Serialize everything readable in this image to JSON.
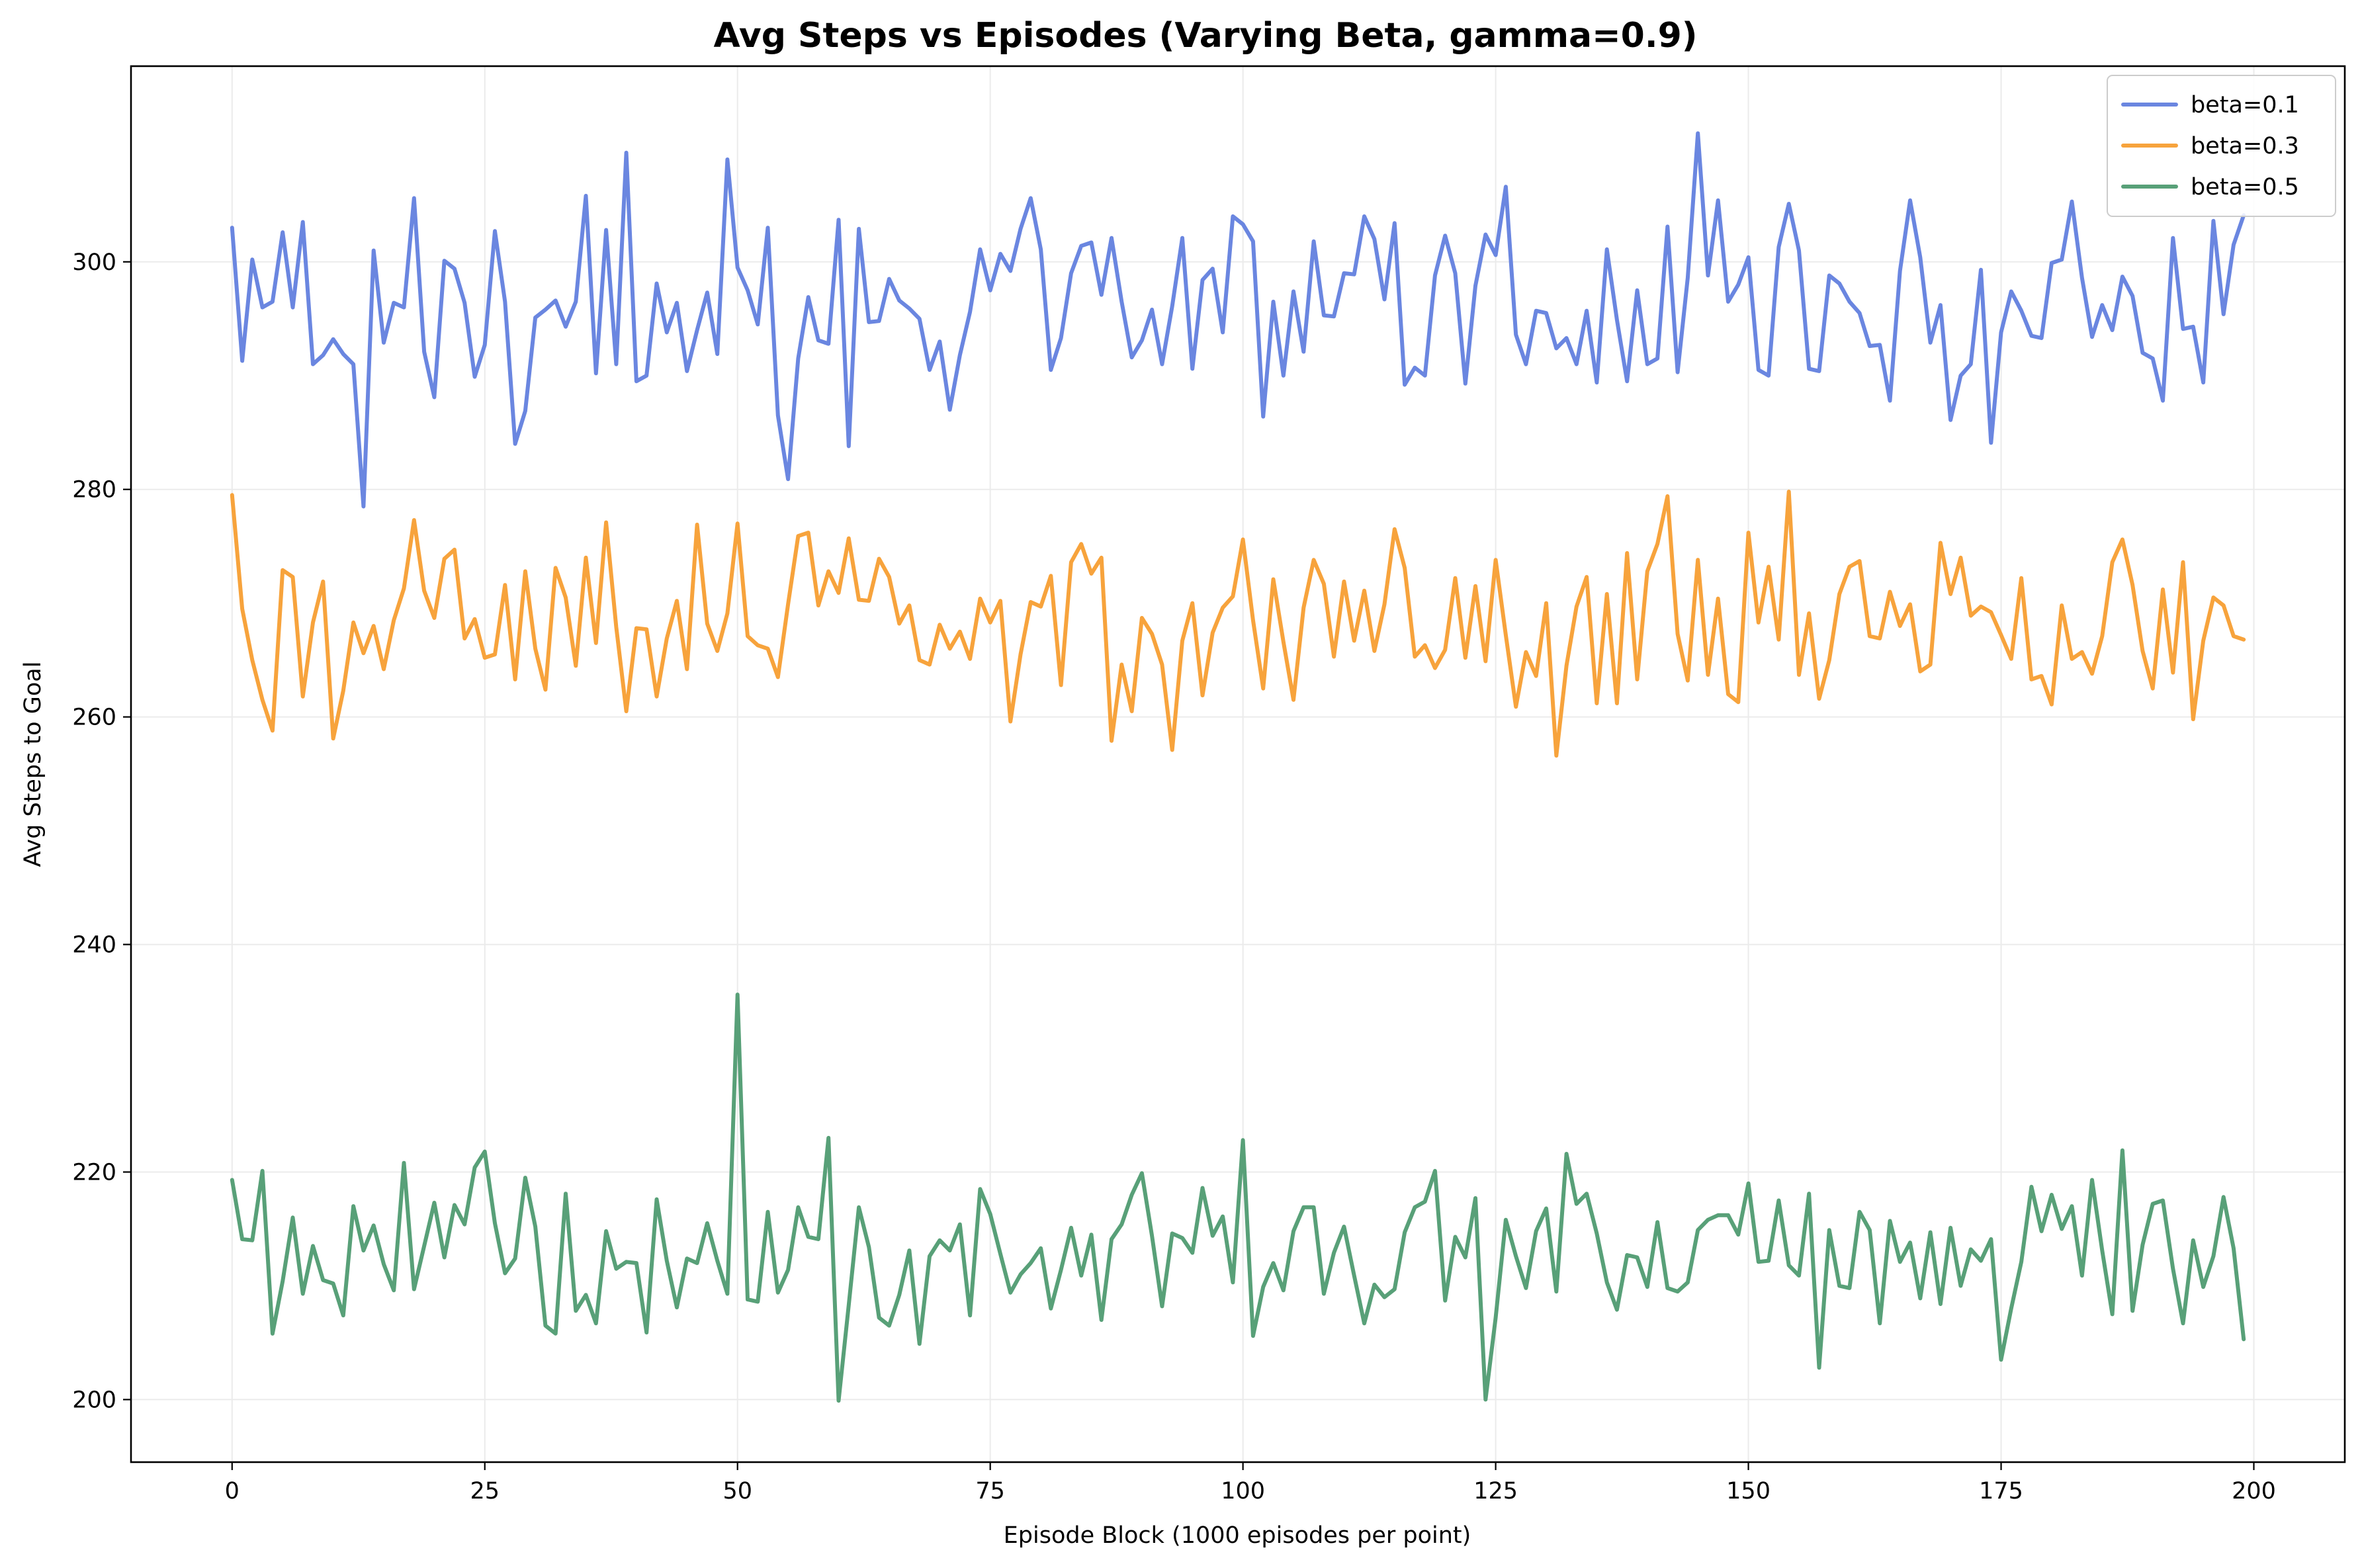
{
  "chart_data": {
    "type": "line",
    "title": "Avg Steps vs Episodes (Varying Beta, gamma=0.9)",
    "xlabel": "Episode Block (1000 episodes per point)",
    "ylabel": "Avg Steps to Goal",
    "xlim": [
      -10,
      209
    ],
    "ylim": [
      194.5,
      317.2
    ],
    "xticks": [
      0,
      25,
      50,
      75,
      100,
      125,
      150,
      175,
      200
    ],
    "yticks": [
      200,
      220,
      240,
      260,
      280,
      300
    ],
    "grid": true,
    "legend_position": "top-right",
    "series": [
      {
        "name": "beta=0.1",
        "color": "#6a86e0",
        "values": [
          303.0,
          291.3,
          300.2,
          296.0,
          296.5,
          302.6,
          296.0,
          303.5,
          291.0,
          291.8,
          293.2,
          291.9,
          291.0,
          278.5,
          301.0,
          292.9,
          296.4,
          296.0,
          305.6,
          292.1,
          288.1,
          300.1,
          299.4,
          296.4,
          289.9,
          292.7,
          302.7,
          296.5,
          284.0,
          286.9,
          295.1,
          295.8,
          296.6,
          294.3,
          296.5,
          305.8,
          290.2,
          302.8,
          291.0,
          309.6,
          289.5,
          290.0,
          298.1,
          293.8,
          296.4,
          290.4,
          294.0,
          297.3,
          291.9,
          309.0,
          299.5,
          297.5,
          294.5,
          303.0,
          286.5,
          280.9,
          291.5,
          296.9,
          293.1,
          292.8,
          303.7,
          283.8,
          302.9,
          294.7,
          294.8,
          298.5,
          296.6,
          295.9,
          295.0,
          290.5,
          293.0,
          287.0,
          291.8,
          295.6,
          301.1,
          297.5,
          300.7,
          299.2,
          302.9,
          305.6,
          301.1,
          290.5,
          293.3,
          299.0,
          301.4,
          301.7,
          297.1,
          302.1,
          296.5,
          291.6,
          293.1,
          295.8,
          291.0,
          296.1,
          302.1,
          290.6,
          298.4,
          299.4,
          293.8,
          304.0,
          303.3,
          301.8,
          286.4,
          296.5,
          290.0,
          297.4,
          292.1,
          301.8,
          295.3,
          295.2,
          299.0,
          298.9,
          304.0,
          302.0,
          296.7,
          303.4,
          289.2,
          290.7,
          290.0,
          298.8,
          302.3,
          299.0,
          289.3,
          297.9,
          302.4,
          300.6,
          306.6,
          293.6,
          291.0,
          295.7,
          295.5,
          292.4,
          293.3,
          291.0,
          295.7,
          289.4,
          301.1,
          294.9,
          289.5,
          297.5,
          291.0,
          291.5,
          303.1,
          290.3,
          298.6,
          311.3,
          298.8,
          305.4,
          296.5,
          298.0,
          300.4,
          290.5,
          290.0,
          301.3,
          305.1,
          301.0,
          290.6,
          290.4,
          298.8,
          298.1,
          296.5,
          295.5,
          292.6,
          292.7,
          287.8,
          299.2,
          305.4,
          300.4,
          292.9,
          296.2,
          286.1,
          290.0,
          291.0,
          299.3,
          284.1,
          293.8,
          297.4,
          295.7,
          293.5,
          293.3,
          299.9,
          300.2,
          305.3,
          298.6,
          293.4,
          296.2,
          294.0,
          298.7,
          297.0,
          292.0,
          291.5,
          287.8,
          302.1,
          294.1,
          294.3,
          289.4,
          303.6,
          295.4,
          301.5,
          304.1
        ]
      },
      {
        "name": "beta=0.3",
        "color": "#f7a33c",
        "values": [
          279.5,
          269.5,
          265.0,
          261.5,
          258.8,
          272.9,
          272.3,
          261.8,
          268.3,
          271.9,
          258.1,
          262.3,
          268.3,
          265.6,
          268.0,
          264.2,
          268.5,
          271.3,
          277.3,
          271.1,
          268.7,
          273.9,
          274.7,
          266.9,
          268.6,
          265.2,
          265.5,
          271.6,
          263.3,
          272.8,
          266.0,
          262.4,
          273.1,
          270.5,
          264.5,
          274.0,
          266.5,
          277.1,
          267.9,
          260.5,
          267.8,
          267.7,
          261.8,
          266.9,
          270.2,
          264.2,
          276.9,
          268.2,
          265.8,
          269.1,
          277.0,
          267.1,
          266.3,
          266.0,
          263.5,
          269.9,
          275.9,
          276.2,
          269.8,
          272.8,
          270.9,
          275.7,
          270.3,
          270.2,
          273.9,
          272.3,
          268.2,
          269.8,
          265.0,
          264.6,
          268.1,
          266.0,
          267.5,
          265.1,
          270.4,
          268.3,
          270.2,
          259.6,
          265.5,
          270.1,
          269.7,
          272.4,
          262.8,
          273.6,
          275.2,
          272.6,
          274.0,
          257.9,
          264.6,
          260.5,
          268.7,
          267.3,
          264.6,
          257.1,
          266.7,
          270.0,
          261.9,
          267.4,
          269.6,
          270.6,
          275.6,
          268.5,
          262.5,
          272.1,
          266.6,
          261.5,
          269.6,
          273.8,
          271.7,
          265.3,
          271.9,
          266.7,
          271.1,
          265.8,
          269.9,
          276.5,
          273.1,
          265.3,
          266.3,
          264.3,
          265.9,
          272.2,
          265.2,
          271.5,
          264.9,
          273.8,
          267.2,
          260.9,
          265.7,
          263.6,
          270.0,
          256.6,
          264.5,
          269.7,
          272.3,
          261.2,
          270.8,
          261.2,
          274.4,
          263.3,
          272.8,
          275.2,
          279.4,
          267.3,
          263.2,
          273.8,
          263.7,
          270.4,
          262.0,
          261.3,
          276.2,
          268.3,
          273.2,
          266.8,
          279.8,
          263.7,
          269.1,
          261.6,
          265.0,
          270.8,
          273.2,
          273.7,
          267.1,
          266.9,
          271.0,
          268.0,
          269.9,
          264.0,
          264.6,
          275.3,
          270.8,
          274.0,
          268.9,
          269.7,
          269.2,
          267.2,
          265.1,
          272.2,
          263.3,
          263.6,
          261.1,
          269.8,
          265.1,
          265.7,
          263.8,
          267.1,
          273.6,
          275.6,
          271.6,
          265.8,
          262.5,
          271.2,
          263.9,
          273.6,
          259.8,
          266.7,
          270.5,
          269.8,
          267.1,
          266.8
        ]
      },
      {
        "name": "beta=0.5",
        "color": "#58a078",
        "values": [
          219.3,
          214.1,
          214.0,
          220.1,
          205.8,
          210.4,
          216.0,
          209.3,
          213.5,
          210.5,
          210.2,
          207.4,
          217.0,
          213.1,
          215.3,
          211.9,
          209.6,
          220.8,
          209.7,
          213.5,
          217.3,
          212.5,
          217.1,
          215.4,
          220.4,
          221.8,
          215.5,
          211.1,
          212.4,
          219.5,
          215.2,
          206.5,
          205.8,
          218.1,
          207.8,
          209.2,
          206.7,
          214.8,
          211.5,
          212.1,
          212.0,
          205.9,
          217.6,
          212.2,
          208.1,
          212.4,
          212.0,
          215.5,
          212.2,
          209.3,
          235.6,
          208.8,
          208.6,
          216.5,
          209.4,
          211.4,
          216.9,
          214.3,
          214.1,
          223.0,
          199.9,
          208.3,
          216.9,
          213.4,
          207.2,
          206.5,
          209.2,
          213.1,
          204.9,
          212.6,
          214.0,
          213.1,
          215.4,
          207.4,
          218.5,
          216.3,
          212.8,
          209.4,
          211.0,
          212.0,
          213.3,
          208.0,
          211.4,
          215.1,
          210.9,
          214.5,
          207.0,
          214.1,
          215.4,
          218.0,
          219.9,
          214.4,
          208.2,
          214.6,
          214.2,
          212.9,
          218.6,
          214.4,
          216.1,
          210.3,
          222.8,
          205.6,
          209.9,
          212.0,
          209.6,
          214.8,
          216.9,
          216.9,
          209.3,
          212.9,
          215.2,
          210.9,
          206.7,
          210.1,
          209.0,
          209.7,
          214.7,
          216.9,
          217.4,
          220.1,
          208.7,
          214.3,
          212.5,
          217.7,
          200.0,
          207.2,
          215.8,
          212.6,
          209.8,
          214.8,
          216.8,
          209.5,
          221.6,
          217.2,
          218.1,
          214.6,
          210.3,
          207.9,
          212.7,
          212.5,
          209.9,
          215.6,
          209.8,
          209.5,
          210.3,
          214.9,
          215.8,
          216.2,
          216.2,
          214.5,
          219.0,
          212.1,
          212.2,
          217.5,
          211.8,
          210.9,
          218.1,
          202.8,
          214.9,
          210.0,
          209.8,
          216.5,
          214.9,
          206.7,
          215.7,
          212.1,
          213.8,
          208.9,
          214.7,
          208.4,
          215.1,
          210.0,
          213.2,
          212.2,
          214.1,
          203.5,
          208.0,
          212.1,
          218.7,
          214.8,
          218.0,
          215.0,
          217.0,
          210.9,
          219.3,
          213.1,
          207.5,
          221.9,
          207.8,
          213.6,
          217.2,
          217.5,
          211.5,
          206.7,
          214.0,
          209.9,
          212.6,
          217.8,
          213.3,
          205.3
        ]
      }
    ]
  }
}
